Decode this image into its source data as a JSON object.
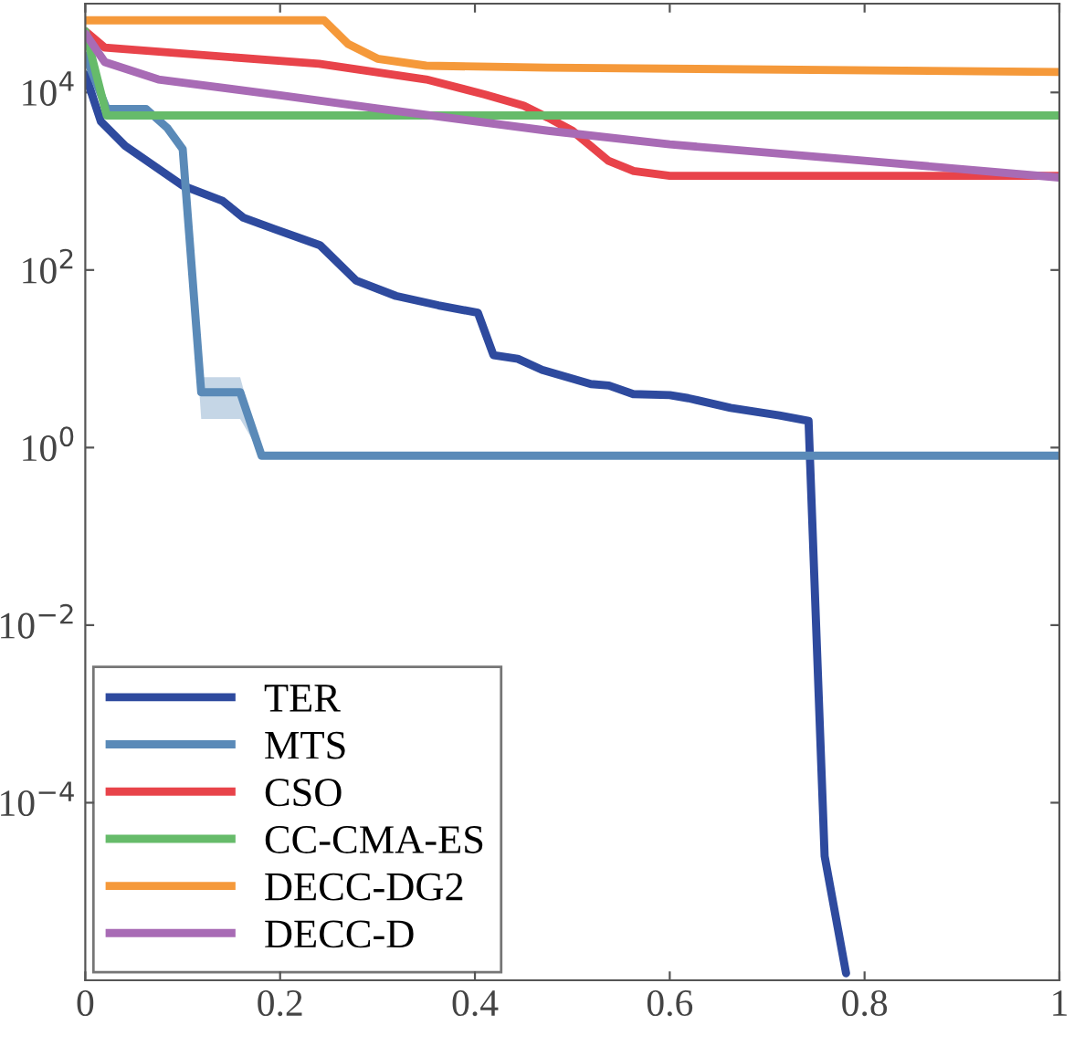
{
  "chart_data": {
    "type": "line",
    "log": "y",
    "xlim": [
      0,
      1
    ],
    "ylim": [
      1e-06,
      100000.0
    ],
    "xticks": [
      0,
      0.2,
      0.4,
      0.6,
      0.8,
      1
    ],
    "yticks": [
      {
        "value": 0.0001,
        "label": "10$^{−4}$"
      },
      {
        "value": 0.01,
        "label": "10$^{−2}$"
      },
      {
        "value": 1,
        "label": "10$^{0}$"
      },
      {
        "value": 100,
        "label": "10$^{2}$"
      },
      {
        "value": 10000,
        "label": "10$^{4}$"
      }
    ],
    "grid": false,
    "legend": "bottom left",
    "line_style": "solid",
    "marker": "none",
    "series": [
      {
        "name": "TER",
        "color": "#2e4a9e",
        "x": [
          0,
          0.016,
          0.041,
          0.1,
          0.141,
          0.162,
          0.194,
          0.241,
          0.278,
          0.319,
          0.3625,
          0.403,
          0.419,
          0.444,
          0.469,
          0.519,
          0.5375,
          0.5625,
          0.6,
          0.619,
          0.6625,
          0.7125,
          0.7425,
          0.759,
          0.781
        ],
        "values": [
          16000,
          4700,
          2500,
          890,
          600,
          390,
          290,
          190,
          76,
          51,
          40,
          33,
          11,
          10,
          7.5,
          5.2,
          5.0,
          4.0,
          3.9,
          3.6,
          2.8,
          2.3,
          2.0,
          2.5e-05,
          1.2e-06
        ]
      },
      {
        "name": "MTS",
        "color": "#5a8ab8",
        "x": [
          0,
          0.022,
          0.0625,
          0.084,
          0.1,
          0.119,
          0.159,
          0.181,
          1
        ],
        "values": [
          26000,
          6500,
          6500,
          4000,
          2300,
          4.2,
          4.2,
          0.81,
          0.81
        ],
        "lower": [
          26000,
          6500,
          6500,
          4000,
          2300,
          2.1,
          2.1,
          0.81,
          0.81
        ],
        "upper": [
          26000,
          6500,
          6500,
          4000,
          2300,
          6.2,
          6.2,
          0.81,
          0.81
        ]
      },
      {
        "name": "CSO",
        "color": "#e8434a",
        "x": [
          0,
          0.02,
          0.24,
          0.35,
          0.41,
          0.45,
          0.475,
          0.5,
          0.537,
          0.563,
          0.6,
          1
        ],
        "values": [
          49000,
          32000,
          21000,
          14000,
          9500,
          7100,
          5200,
          3700,
          1700,
          1300,
          1150,
          1150
        ]
      },
      {
        "name": "CC-CMA-ES",
        "color": "#66bb6a",
        "x": [
          0,
          0.022,
          1
        ],
        "values": [
          49000,
          5500,
          5500
        ]
      },
      {
        "name": "DECC-DG2",
        "color": "#f5993a",
        "x": [
          0,
          0.245,
          0.27,
          0.3,
          0.35,
          0.475,
          1
        ],
        "values": [
          65000,
          65000,
          35000,
          24000,
          20000,
          19000,
          17000
        ]
      },
      {
        "name": "DECC-D",
        "color": "#a86bb5",
        "x": [
          0,
          0.02,
          0.075,
          0.2,
          0.3,
          0.475,
          0.6,
          0.8,
          1
        ],
        "values": [
          46000,
          22000,
          14000,
          9300,
          6600,
          3700,
          2600,
          1700,
          1100
        ]
      }
    ]
  }
}
